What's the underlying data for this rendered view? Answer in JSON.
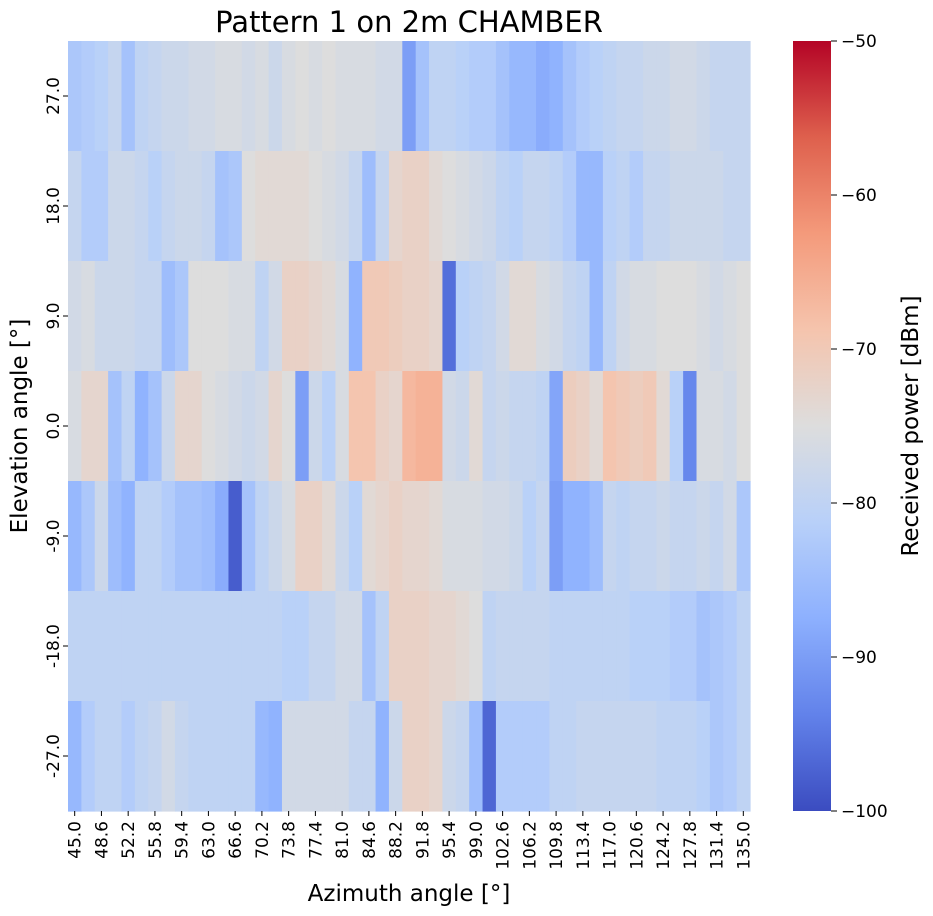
{
  "chart_data": {
    "type": "heatmap",
    "title": "Pattern 1 on 2m CHAMBER",
    "xlabel": "Azimuth angle [°]",
    "ylabel": "Elevation angle [°]",
    "colorbar_label": "Received power [dBm]",
    "colormap": "coolwarm",
    "vmin": -100,
    "vmax": -50,
    "colorbar_ticks": [
      -50,
      -60,
      -70,
      -80,
      -90,
      -100
    ],
    "x_tick_labels": [
      "45.0",
      "48.6",
      "52.2",
      "55.8",
      "59.4",
      "63.0",
      "66.6",
      "70.2",
      "73.8",
      "77.4",
      "81.0",
      "84.6",
      "88.2",
      "91.8",
      "95.4",
      "99.0",
      "102.6",
      "106.2",
      "109.8",
      "113.4",
      "117.0",
      "120.6",
      "124.2",
      "127.8",
      "131.4",
      "135.0"
    ],
    "y_tick_labels": [
      "27.0",
      "18.0",
      "9.0",
      "0.0",
      "-9.0",
      "-18.0",
      "-27.0"
    ],
    "x_values": [
      45.0,
      46.8,
      48.6,
      50.4,
      52.2,
      54.0,
      55.8,
      57.6,
      59.4,
      61.2,
      63.0,
      64.8,
      66.6,
      68.4,
      70.2,
      72.0,
      73.8,
      75.6,
      77.4,
      79.2,
      81.0,
      82.8,
      84.6,
      86.4,
      88.2,
      90.0,
      91.8,
      93.6,
      95.4,
      97.2,
      99.0,
      100.8,
      102.6,
      104.4,
      106.2,
      108.0,
      109.8,
      111.6,
      113.4,
      115.2,
      117.0,
      118.8,
      120.6,
      122.4,
      124.2,
      126.0,
      127.8,
      129.6,
      131.4,
      133.2,
      135.0
    ],
    "y_values": [
      27.0,
      18.0,
      9.0,
      0.0,
      -9.0,
      -18.0,
      -27.0
    ],
    "values": [
      [
        -83,
        -82,
        -81,
        -79,
        -84,
        -80,
        -79,
        -78,
        -78,
        -77,
        -77,
        -76,
        -76,
        -77,
        -76,
        -78,
        -76,
        -75,
        -76,
        -75,
        -76,
        -76,
        -76,
        -77,
        -77,
        -90,
        -84,
        -80,
        -80,
        -81,
        -82,
        -82,
        -84,
        -86,
        -86,
        -88,
        -87,
        -84,
        -82,
        -81,
        -80,
        -79,
        -79,
        -78,
        -78,
        -77,
        -77,
        -78,
        -79,
        -79,
        -79
      ],
      [
        -79,
        -82,
        -82,
        -78,
        -78,
        -79,
        -81,
        -79,
        -78,
        -78,
        -79,
        -84,
        -83,
        -75,
        -74,
        -74,
        -74,
        -74,
        -75,
        -76,
        -77,
        -79,
        -85,
        -79,
        -73,
        -72,
        -72,
        -74,
        -75,
        -76,
        -77,
        -78,
        -80,
        -81,
        -79,
        -79,
        -80,
        -82,
        -86,
        -86,
        -81,
        -80,
        -82,
        -79,
        -79,
        -78,
        -78,
        -78,
        -78,
        -79,
        -79
      ],
      [
        -77,
        -76,
        -78,
        -78,
        -78,
        -79,
        -79,
        -85,
        -83,
        -75,
        -75,
        -75,
        -76,
        -76,
        -80,
        -77,
        -72,
        -72,
        -73,
        -74,
        -76,
        -87,
        -70,
        -70,
        -71,
        -72,
        -72,
        -73,
        -96,
        -81,
        -80,
        -79,
        -77,
        -74,
        -74,
        -76,
        -77,
        -79,
        -80,
        -86,
        -80,
        -77,
        -76,
        -76,
        -75,
        -75,
        -75,
        -76,
        -77,
        -76,
        -75
      ],
      [
        -76,
        -73,
        -73,
        -84,
        -80,
        -87,
        -84,
        -78,
        -73,
        -73,
        -75,
        -76,
        -77,
        -78,
        -77,
        -73,
        -75,
        -90,
        -78,
        -81,
        -76,
        -69,
        -69,
        -72,
        -73,
        -67,
        -66,
        -66,
        -77,
        -78,
        -74,
        -79,
        -78,
        -79,
        -79,
        -80,
        -89,
        -71,
        -72,
        -74,
        -69,
        -70,
        -71,
        -70,
        -74,
        -81,
        -93,
        -76,
        -76,
        -77,
        -75
      ],
      [
        -86,
        -83,
        -78,
        -85,
        -87,
        -80,
        -80,
        -82,
        -84,
        -84,
        -85,
        -88,
        -98,
        -84,
        -80,
        -78,
        -76,
        -72,
        -72,
        -74,
        -78,
        -81,
        -74,
        -73,
        -72,
        -73,
        -73,
        -74,
        -76,
        -76,
        -76,
        -77,
        -77,
        -78,
        -81,
        -79,
        -90,
        -87,
        -87,
        -85,
        -79,
        -80,
        -79,
        -79,
        -78,
        -79,
        -79,
        -78,
        -79,
        -77,
        -83
      ],
      [
        -80,
        -80,
        -80,
        -80,
        -80,
        -80,
        -80,
        -80,
        -80,
        -80,
        -80,
        -80,
        -80,
        -80,
        -80,
        -80,
        -81,
        -81,
        -79,
        -79,
        -77,
        -77,
        -84,
        -80,
        -72,
        -72,
        -72,
        -73,
        -73,
        -74,
        -75,
        -80,
        -79,
        -79,
        -79,
        -79,
        -80,
        -80,
        -80,
        -80,
        -80,
        -80,
        -81,
        -81,
        -81,
        -82,
        -82,
        -84,
        -83,
        -82,
        -80
      ],
      [
        -86,
        -82,
        -80,
        -80,
        -82,
        -80,
        -79,
        -77,
        -79,
        -80,
        -80,
        -80,
        -80,
        -80,
        -86,
        -87,
        -77,
        -77,
        -77,
        -77,
        -77,
        -79,
        -79,
        -87,
        -78,
        -72,
        -72,
        -73,
        -78,
        -79,
        -85,
        -97,
        -82,
        -82,
        -82,
        -82,
        -80,
        -80,
        -79,
        -79,
        -79,
        -79,
        -79,
        -79,
        -80,
        -80,
        -80,
        -81,
        -83,
        -82,
        -80
      ]
    ]
  }
}
